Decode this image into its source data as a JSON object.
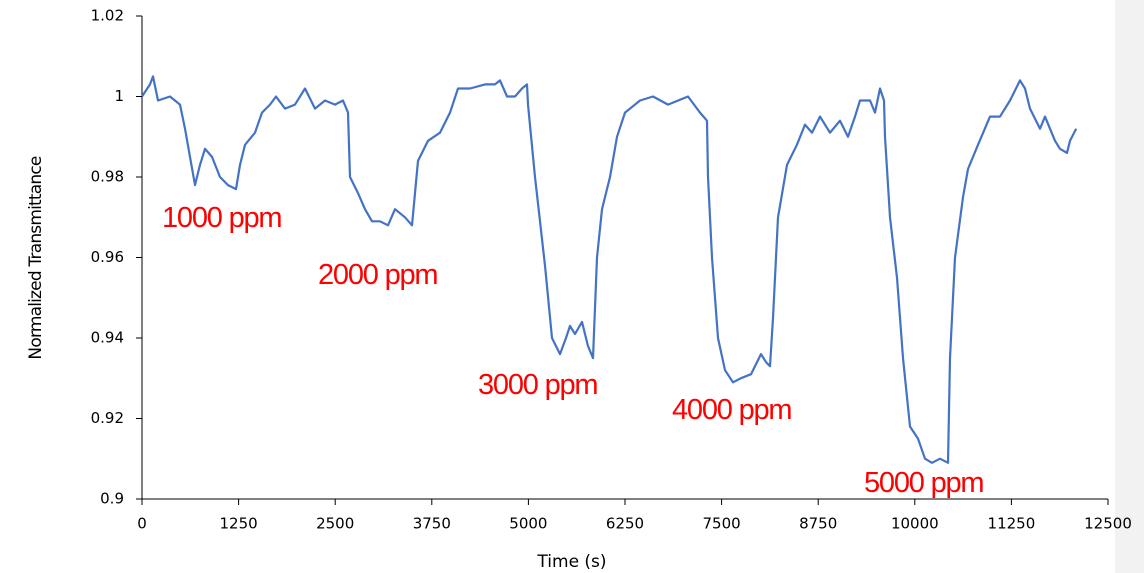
{
  "chart_data": {
    "type": "line",
    "xlabel": "Time (s)",
    "ylabel": "Normalized Transmittance",
    "xlim": [
      0,
      12500
    ],
    "xticks": [
      0,
      1250,
      2500,
      3750,
      5000,
      6250,
      7500,
      8750,
      10000,
      11250,
      12500
    ],
    "ylim": [
      0.9,
      1.02
    ],
    "yticks": [
      0.9,
      0.92,
      0.94,
      0.96,
      0.98,
      1,
      1.02
    ],
    "grid": false,
    "annotations": [
      "1000 ppm",
      "2000 ppm",
      "3000 ppm",
      "4000 ppm",
      "5000 ppm"
    ],
    "x": [
      0,
      104,
      142,
      207,
      362,
      492,
      556,
      621,
      686,
      751,
      815,
      906,
      1009,
      1113,
      1216,
      1268,
      1333,
      1462,
      1553,
      1656,
      1734,
      1850,
      1980,
      2109,
      2239,
      2368,
      2497,
      2601,
      2666,
      2692,
      2795,
      2886,
      2976,
      3080,
      3183,
      3274,
      3403,
      3494,
      3533,
      3571,
      3701,
      3856,
      3986,
      4089,
      4244,
      4438,
      4568,
      4633,
      4723,
      4827,
      4917,
      4982,
      4995,
      5085,
      5215,
      5305,
      5409,
      5487,
      5538,
      5603,
      5694,
      5771,
      5836,
      5888,
      5953,
      6056,
      6147,
      6250,
      6444,
      6612,
      6806,
      7065,
      7220,
      7311,
      7324,
      7376,
      7453,
      7544,
      7648,
      7751,
      7880,
      8010,
      8075,
      8126,
      8165,
      8230,
      8346,
      8475,
      8579,
      8670,
      8773,
      8903,
      9032,
      9136,
      9226,
      9291,
      9420,
      9485,
      9550,
      9602,
      9614,
      9679,
      9770,
      9847,
      9938,
      10041,
      10132,
      10222,
      10326,
      10429,
      10455,
      10520,
      10624,
      10688,
      10818,
      10973,
      11102,
      11232,
      11361,
      11426,
      11491,
      11620,
      11685,
      11814,
      11879,
      11970,
      12008,
      12088
    ],
    "series": [
      {
        "color": "#4472c4",
        "values": [
          1.0,
          1.003,
          1.005,
          0.999,
          1.0,
          0.998,
          0.992,
          0.985,
          0.978,
          0.983,
          0.987,
          0.985,
          0.98,
          0.978,
          0.977,
          0.983,
          0.988,
          0.991,
          0.996,
          0.998,
          1.0,
          0.997,
          0.998,
          1.002,
          0.997,
          0.999,
          0.998,
          0.999,
          0.996,
          0.98,
          0.976,
          0.972,
          0.969,
          0.969,
          0.968,
          0.972,
          0.97,
          0.968,
          0.976,
          0.984,
          0.989,
          0.991,
          0.996,
          1.002,
          1.002,
          1.003,
          1.003,
          1.004,
          1.0,
          1.0,
          1.002,
          1.003,
          0.998,
          0.98,
          0.958,
          0.94,
          0.936,
          0.94,
          0.943,
          0.941,
          0.944,
          0.938,
          0.935,
          0.96,
          0.972,
          0.98,
          0.99,
          0.996,
          0.999,
          1.0,
          0.998,
          1.0,
          0.996,
          0.994,
          0.98,
          0.96,
          0.94,
          0.932,
          0.929,
          0.93,
          0.931,
          0.936,
          0.934,
          0.933,
          0.945,
          0.97,
          0.983,
          0.988,
          0.993,
          0.991,
          0.995,
          0.991,
          0.994,
          0.99,
          0.995,
          0.999,
          0.999,
          0.996,
          1.002,
          0.999,
          0.99,
          0.97,
          0.955,
          0.935,
          0.918,
          0.915,
          0.91,
          0.909,
          0.91,
          0.909,
          0.935,
          0.96,
          0.975,
          0.982,
          0.988,
          0.995,
          0.995,
          0.999,
          1.004,
          1.002,
          0.997,
          0.992,
          0.995,
          0.989,
          0.987,
          0.986,
          0.989,
          0.992
        ]
      }
    ]
  }
}
